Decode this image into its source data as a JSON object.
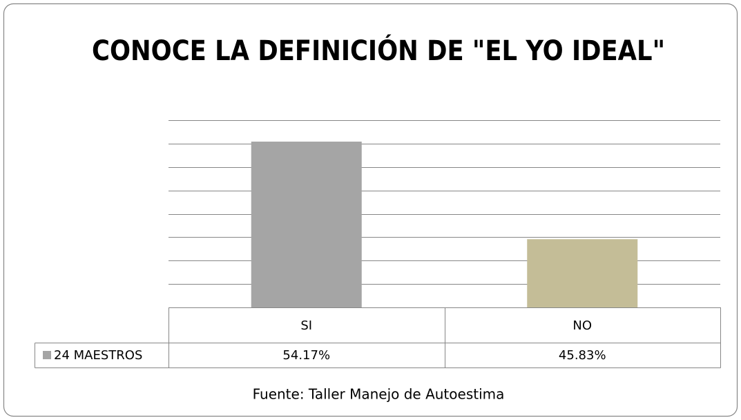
{
  "chart_data": {
    "type": "bar",
    "title": "CONOCE LA DEFINICIÓN DE \"EL YO IDEAL\"",
    "categories": [
      "SI",
      "NO"
    ],
    "series": [
      {
        "name": "24 MAESTROS",
        "color": "#a5a5a5",
        "point_colors": [
          "#a5a5a5",
          "#c4bd97"
        ],
        "values": [
          54.17,
          45.83
        ],
        "value_labels": [
          "54.17%",
          "45.83%"
        ]
      }
    ],
    "ylim": [
      40,
      56
    ],
    "yticks": [
      40,
      42,
      44,
      46,
      48,
      50,
      52,
      54,
      56
    ],
    "grid": true,
    "source": "Fuente: Taller Manejo de Autoestima"
  }
}
